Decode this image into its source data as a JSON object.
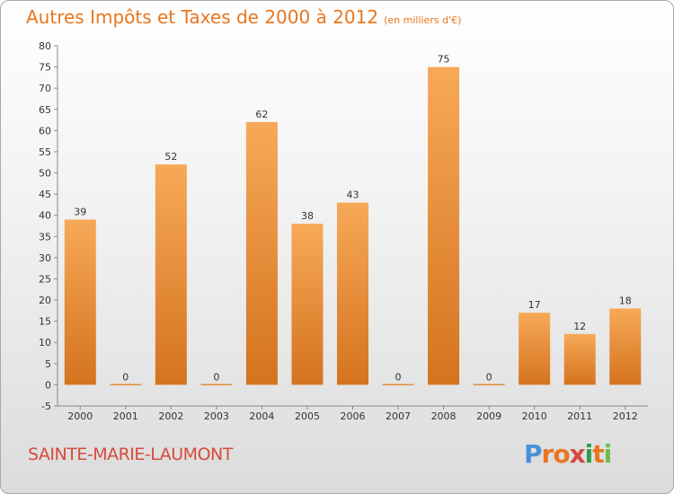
{
  "chart_data": {
    "type": "bar",
    "title": "Autres Impôts et Taxes de 2000 à 2012",
    "unit": "(en milliers d'€)",
    "categories": [
      "2000",
      "2001",
      "2002",
      "2003",
      "2004",
      "2005",
      "2006",
      "2007",
      "2008",
      "2009",
      "2010",
      "2011",
      "2012"
    ],
    "values": [
      39,
      0,
      52,
      0,
      62,
      38,
      43,
      0,
      75,
      0,
      17,
      12,
      18
    ],
    "ylim": [
      -5,
      80
    ],
    "yticks": [
      -5,
      0,
      5,
      10,
      15,
      20,
      25,
      30,
      35,
      40,
      45,
      50,
      55,
      60,
      65,
      70,
      75,
      80
    ],
    "grid": false,
    "bar_color_top": "#f7a957",
    "bar_color_bottom": "#d4731f"
  },
  "footer": {
    "town": "SAINTE-MARIE-LAUMONT",
    "logo_letters": [
      "P",
      "r",
      "o",
      "x",
      "i",
      "t",
      "i"
    ],
    "logo_colors": [
      "#4a90d9",
      "#e8761f",
      "#e8761f",
      "#d64a3c",
      "#2e9e4a",
      "#e8761f",
      "#6abf4b"
    ]
  },
  "colors": {
    "title": "#e8761f",
    "town": "#d64a3c"
  }
}
